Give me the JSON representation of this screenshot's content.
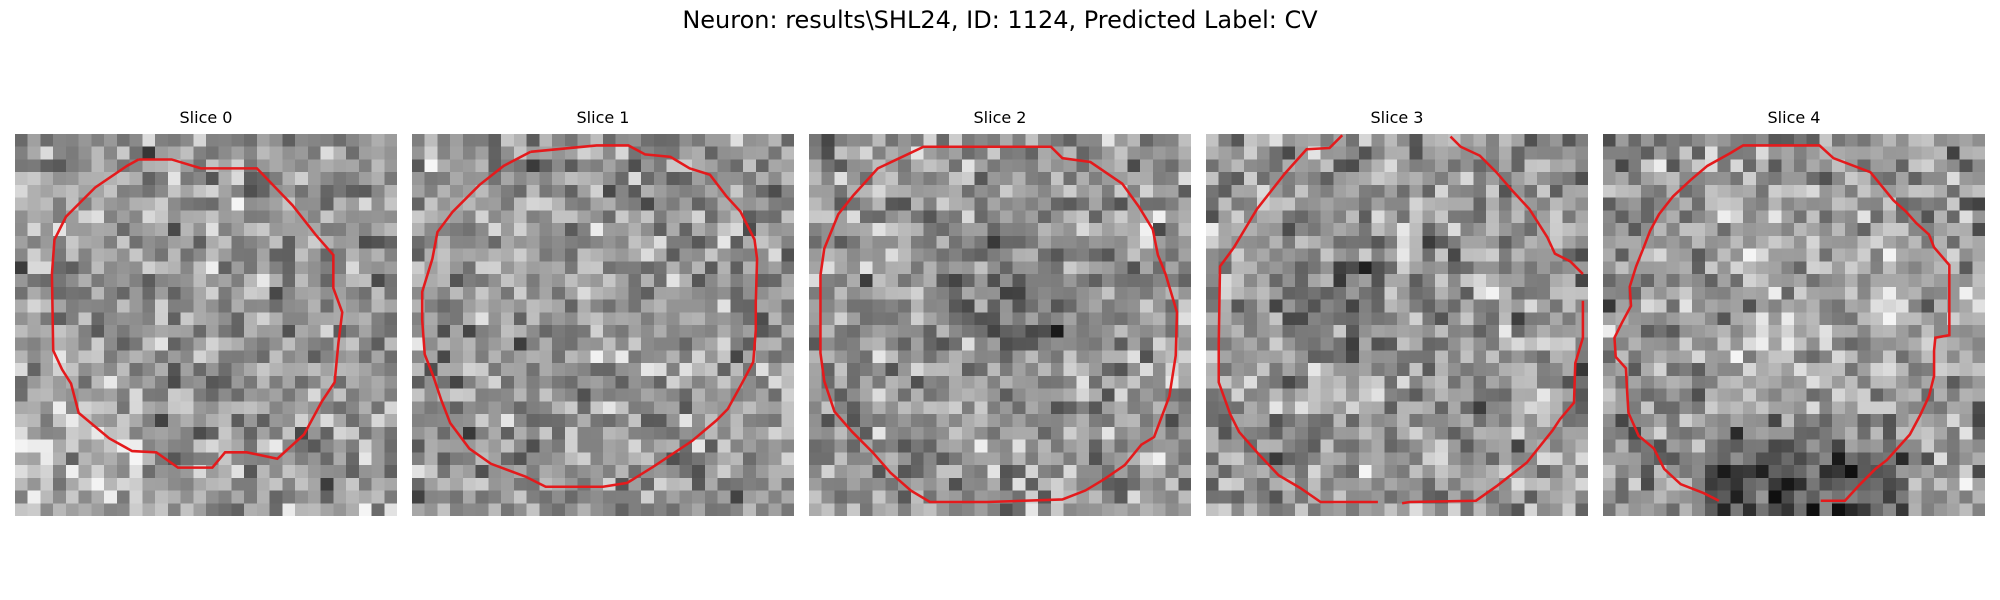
{
  "figure": {
    "title": "Neuron: results\\SHL24, ID: 1124, Predicted Label: CV",
    "contour_color": "#e41a1c",
    "colormap": "gray",
    "grid_size": 30
  },
  "slices": [
    {
      "title": "Slice 0",
      "seed": 11,
      "dark_region": "bottom-left"
    },
    {
      "title": "Slice 1",
      "seed": 23,
      "dark_region": "none"
    },
    {
      "title": "Slice 2",
      "seed": 37,
      "dark_region": "center"
    },
    {
      "title": "Slice 3",
      "seed": 41,
      "dark_region": "left-center"
    },
    {
      "title": "Slice 4",
      "seed": 53,
      "dark_region": "bottom"
    }
  ]
}
